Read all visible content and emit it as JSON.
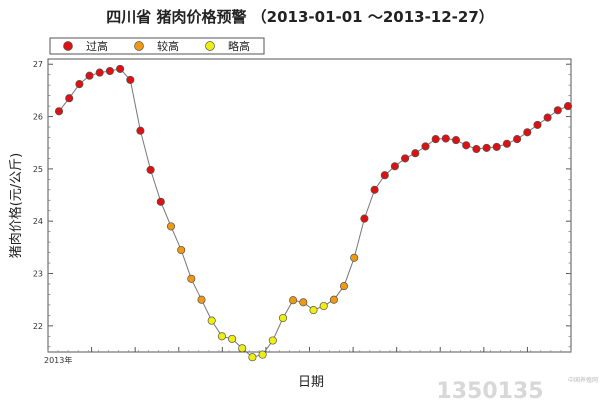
{
  "chart_data": {
    "type": "line",
    "title": "四川省 猪肉价格预警 （2013-01-01 ～2013-12-27）",
    "xlabel": "日期",
    "ylabel": "猪肉价格(元/公斤)",
    "x_tick_label": "2013年",
    "ylim": [
      21.5,
      27.1
    ],
    "yticks": [
      22,
      23,
      24,
      25,
      26,
      27
    ],
    "grid": false,
    "legend_position": "top-left",
    "colors": {
      "high": "#dd1111",
      "medium": "#ee9911",
      "low": "#eeee11",
      "line": "#777777"
    },
    "legend": [
      {
        "key": "high",
        "label": "过高"
      },
      {
        "key": "medium",
        "label": "较高"
      },
      {
        "key": "low",
        "label": "略高"
      }
    ],
    "series": [
      {
        "values": [
          26.1,
          26.35,
          26.62,
          26.78,
          26.84,
          26.87,
          26.91,
          26.7,
          25.73,
          24.98,
          24.37,
          23.9,
          23.45,
          22.9,
          22.5,
          22.1,
          21.8,
          21.75,
          21.57,
          21.4,
          21.45,
          21.72,
          22.15,
          22.49,
          22.45,
          22.3,
          22.38,
          22.5,
          22.76,
          23.3,
          24.05,
          24.6,
          24.88,
          25.05,
          25.2,
          25.3,
          25.43,
          25.57,
          25.58,
          25.55,
          25.45,
          25.38,
          25.4,
          25.42,
          25.48,
          25.57,
          25.7,
          25.84,
          25.98,
          26.12,
          26.2
        ],
        "levels": [
          "high",
          "high",
          "high",
          "high",
          "high",
          "high",
          "high",
          "high",
          "high",
          "high",
          "high",
          "medium",
          "medium",
          "medium",
          "medium",
          "low",
          "low",
          "low",
          "low",
          "low",
          "low",
          "low",
          "low",
          "medium",
          "medium",
          "low",
          "low",
          "medium",
          "medium",
          "medium",
          "high",
          "high",
          "high",
          "high",
          "high",
          "high",
          "high",
          "high",
          "high",
          "high",
          "high",
          "high",
          "high",
          "high",
          "high",
          "high",
          "high",
          "high",
          "high",
          "high",
          "high"
        ]
      }
    ]
  },
  "watermark": {
    "main": "1350135",
    "sub": "中国养殖网"
  }
}
